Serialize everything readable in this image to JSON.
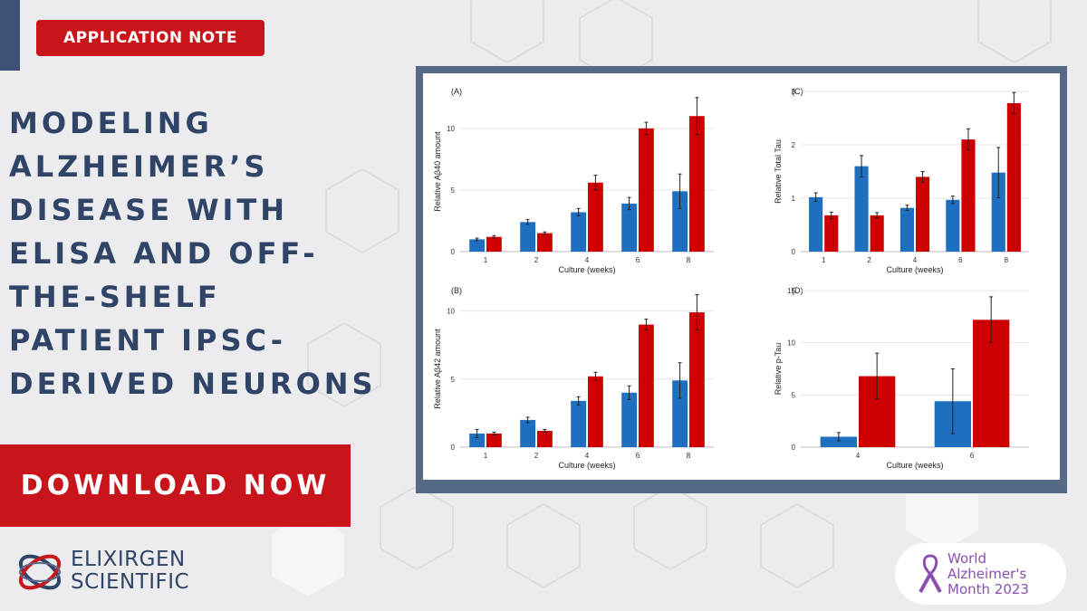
{
  "tag_label": "APPLICATION NOTE",
  "title_lines": [
    "MODELING",
    "ALZHEIMER’S",
    "DISEASE WITH",
    "ELISA AND OFF-",
    "THE-SHELF",
    "PATIENT IPSC-",
    "DERIVED NEURONS"
  ],
  "cta_label": "DOWNLOAD NOW",
  "logo": {
    "line1": "ELIXIRGEN",
    "line2": "SCIENTIFIC"
  },
  "badge": {
    "line1": "World",
    "line2": "Alzheimer's",
    "line3": "Month 2023"
  },
  "colors": {
    "blue": "#1f6fc0",
    "red": "#cc0000",
    "navy": "#2f4467",
    "accent_red": "#c8151b",
    "frame": "#566987",
    "purple": "#8a4fb0"
  },
  "icons": {
    "logo": "interlocking-rings-icon",
    "badge": "awareness-ribbon-icon"
  },
  "chart_data": [
    {
      "panel": "(A)",
      "type": "bar",
      "xlabel": "Culture (weeks)",
      "ylabel": "Relative Aβ40 amount",
      "categories": [
        "1",
        "2",
        "4",
        "6",
        "8"
      ],
      "ylim": [
        0,
        13
      ],
      "yticks": [
        0,
        5,
        10
      ],
      "series": [
        {
          "values": [
            1.0,
            2.4,
            3.2,
            3.9,
            4.9
          ],
          "errors": [
            0.1,
            0.2,
            0.3,
            0.5,
            1.4
          ]
        },
        {
          "values": [
            1.2,
            1.5,
            5.6,
            10.0,
            11.0
          ],
          "errors": [
            0.1,
            0.1,
            0.6,
            0.5,
            1.5
          ]
        }
      ]
    },
    {
      "panel": "(B)",
      "type": "bar",
      "xlabel": "Culture (weeks)",
      "ylabel": "Relative Aβ42 amount",
      "categories": [
        "1",
        "2",
        "4",
        "6",
        "8"
      ],
      "ylim": [
        0,
        11.5
      ],
      "yticks": [
        0,
        5,
        10
      ],
      "series": [
        {
          "values": [
            1.0,
            2.0,
            3.4,
            4.0,
            4.9
          ],
          "errors": [
            0.3,
            0.2,
            0.3,
            0.5,
            1.3
          ]
        },
        {
          "values": [
            1.0,
            1.2,
            5.2,
            9.0,
            9.9
          ],
          "errors": [
            0.1,
            0.1,
            0.3,
            0.4,
            1.3
          ]
        }
      ]
    },
    {
      "panel": "(C)",
      "type": "bar",
      "xlabel": "Culture (weeks)",
      "ylabel": "Relative Total Tau",
      "categories": [
        "1",
        "2",
        "4",
        "6",
        "8"
      ],
      "ylim": [
        0,
        3
      ],
      "yticks": [
        0,
        1,
        2,
        3
      ],
      "series": [
        {
          "values": [
            1.02,
            1.6,
            0.82,
            0.97,
            1.48
          ],
          "errors": [
            0.08,
            0.2,
            0.05,
            0.07,
            0.47
          ]
        },
        {
          "values": [
            0.68,
            0.68,
            1.4,
            2.1,
            2.78
          ],
          "errors": [
            0.06,
            0.05,
            0.1,
            0.2,
            0.2
          ]
        }
      ]
    },
    {
      "panel": "(D)",
      "type": "bar",
      "xlabel": "Culture (weeks)",
      "ylabel": "Relative p-Tau",
      "categories": [
        "4",
        "6"
      ],
      "ylim": [
        0,
        15
      ],
      "yticks": [
        0,
        5,
        10,
        15
      ],
      "series": [
        {
          "values": [
            1.0,
            4.4
          ],
          "errors": [
            0.4,
            3.1
          ]
        },
        {
          "values": [
            6.8,
            12.2
          ],
          "errors": [
            2.2,
            2.2
          ]
        }
      ]
    }
  ]
}
